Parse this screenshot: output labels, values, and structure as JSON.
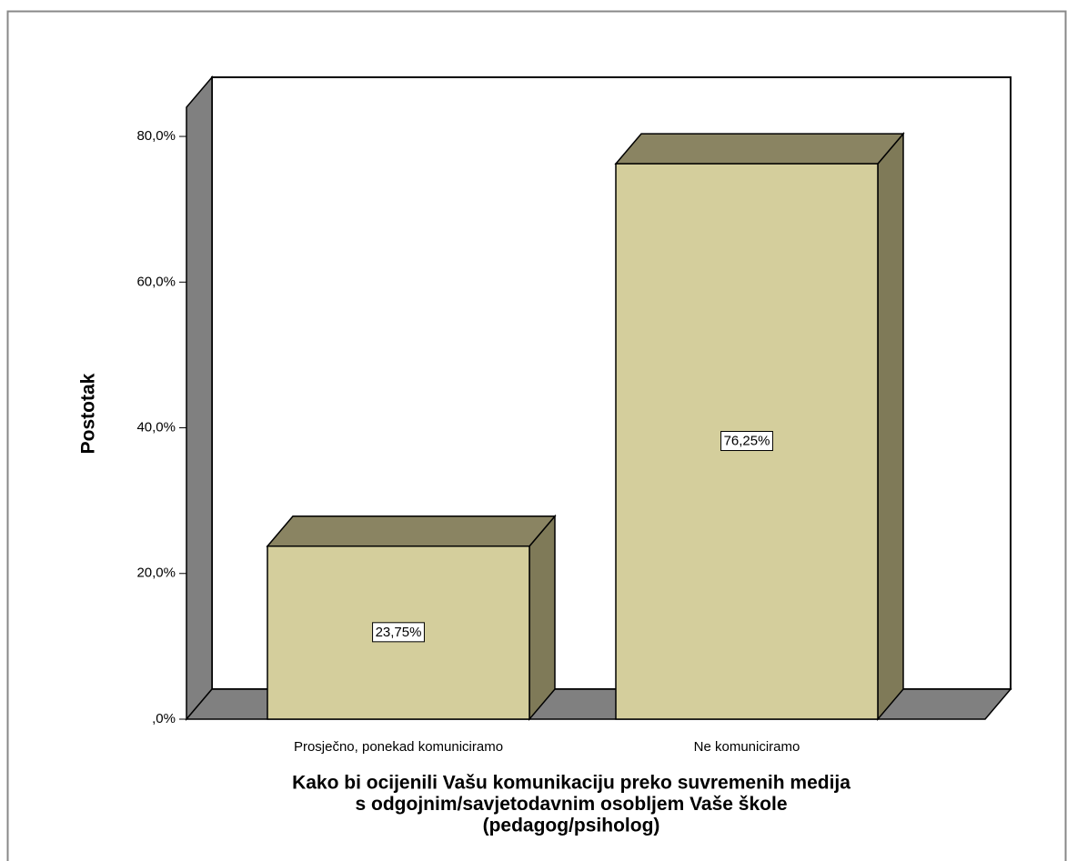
{
  "chart_data": {
    "type": "bar",
    "categories": [
      "Prosječno, ponekad komuniciramo",
      "Ne komuniciramo"
    ],
    "values": [
      23.75,
      76.25
    ],
    "value_labels": [
      "23,75%",
      "76,25%"
    ],
    "color": "#d4ce9c",
    "ylabel": "Postotak",
    "xlabel": [
      "Kako bi ocijenili Vašu komunikaciju preko suvremenih medija",
      "s odgojnim/savjetodavnim osobljem Vaše škole",
      "(pedagog/psiholog)"
    ],
    "ylim": [
      0,
      84
    ],
    "yticks": [
      {
        "value": 0,
        "label": ",0%"
      },
      {
        "value": 20,
        "label": "20,0%"
      },
      {
        "value": 40,
        "label": "40,0%"
      },
      {
        "value": 60,
        "label": "60,0%"
      },
      {
        "value": 80,
        "label": "80,0%"
      }
    ]
  }
}
